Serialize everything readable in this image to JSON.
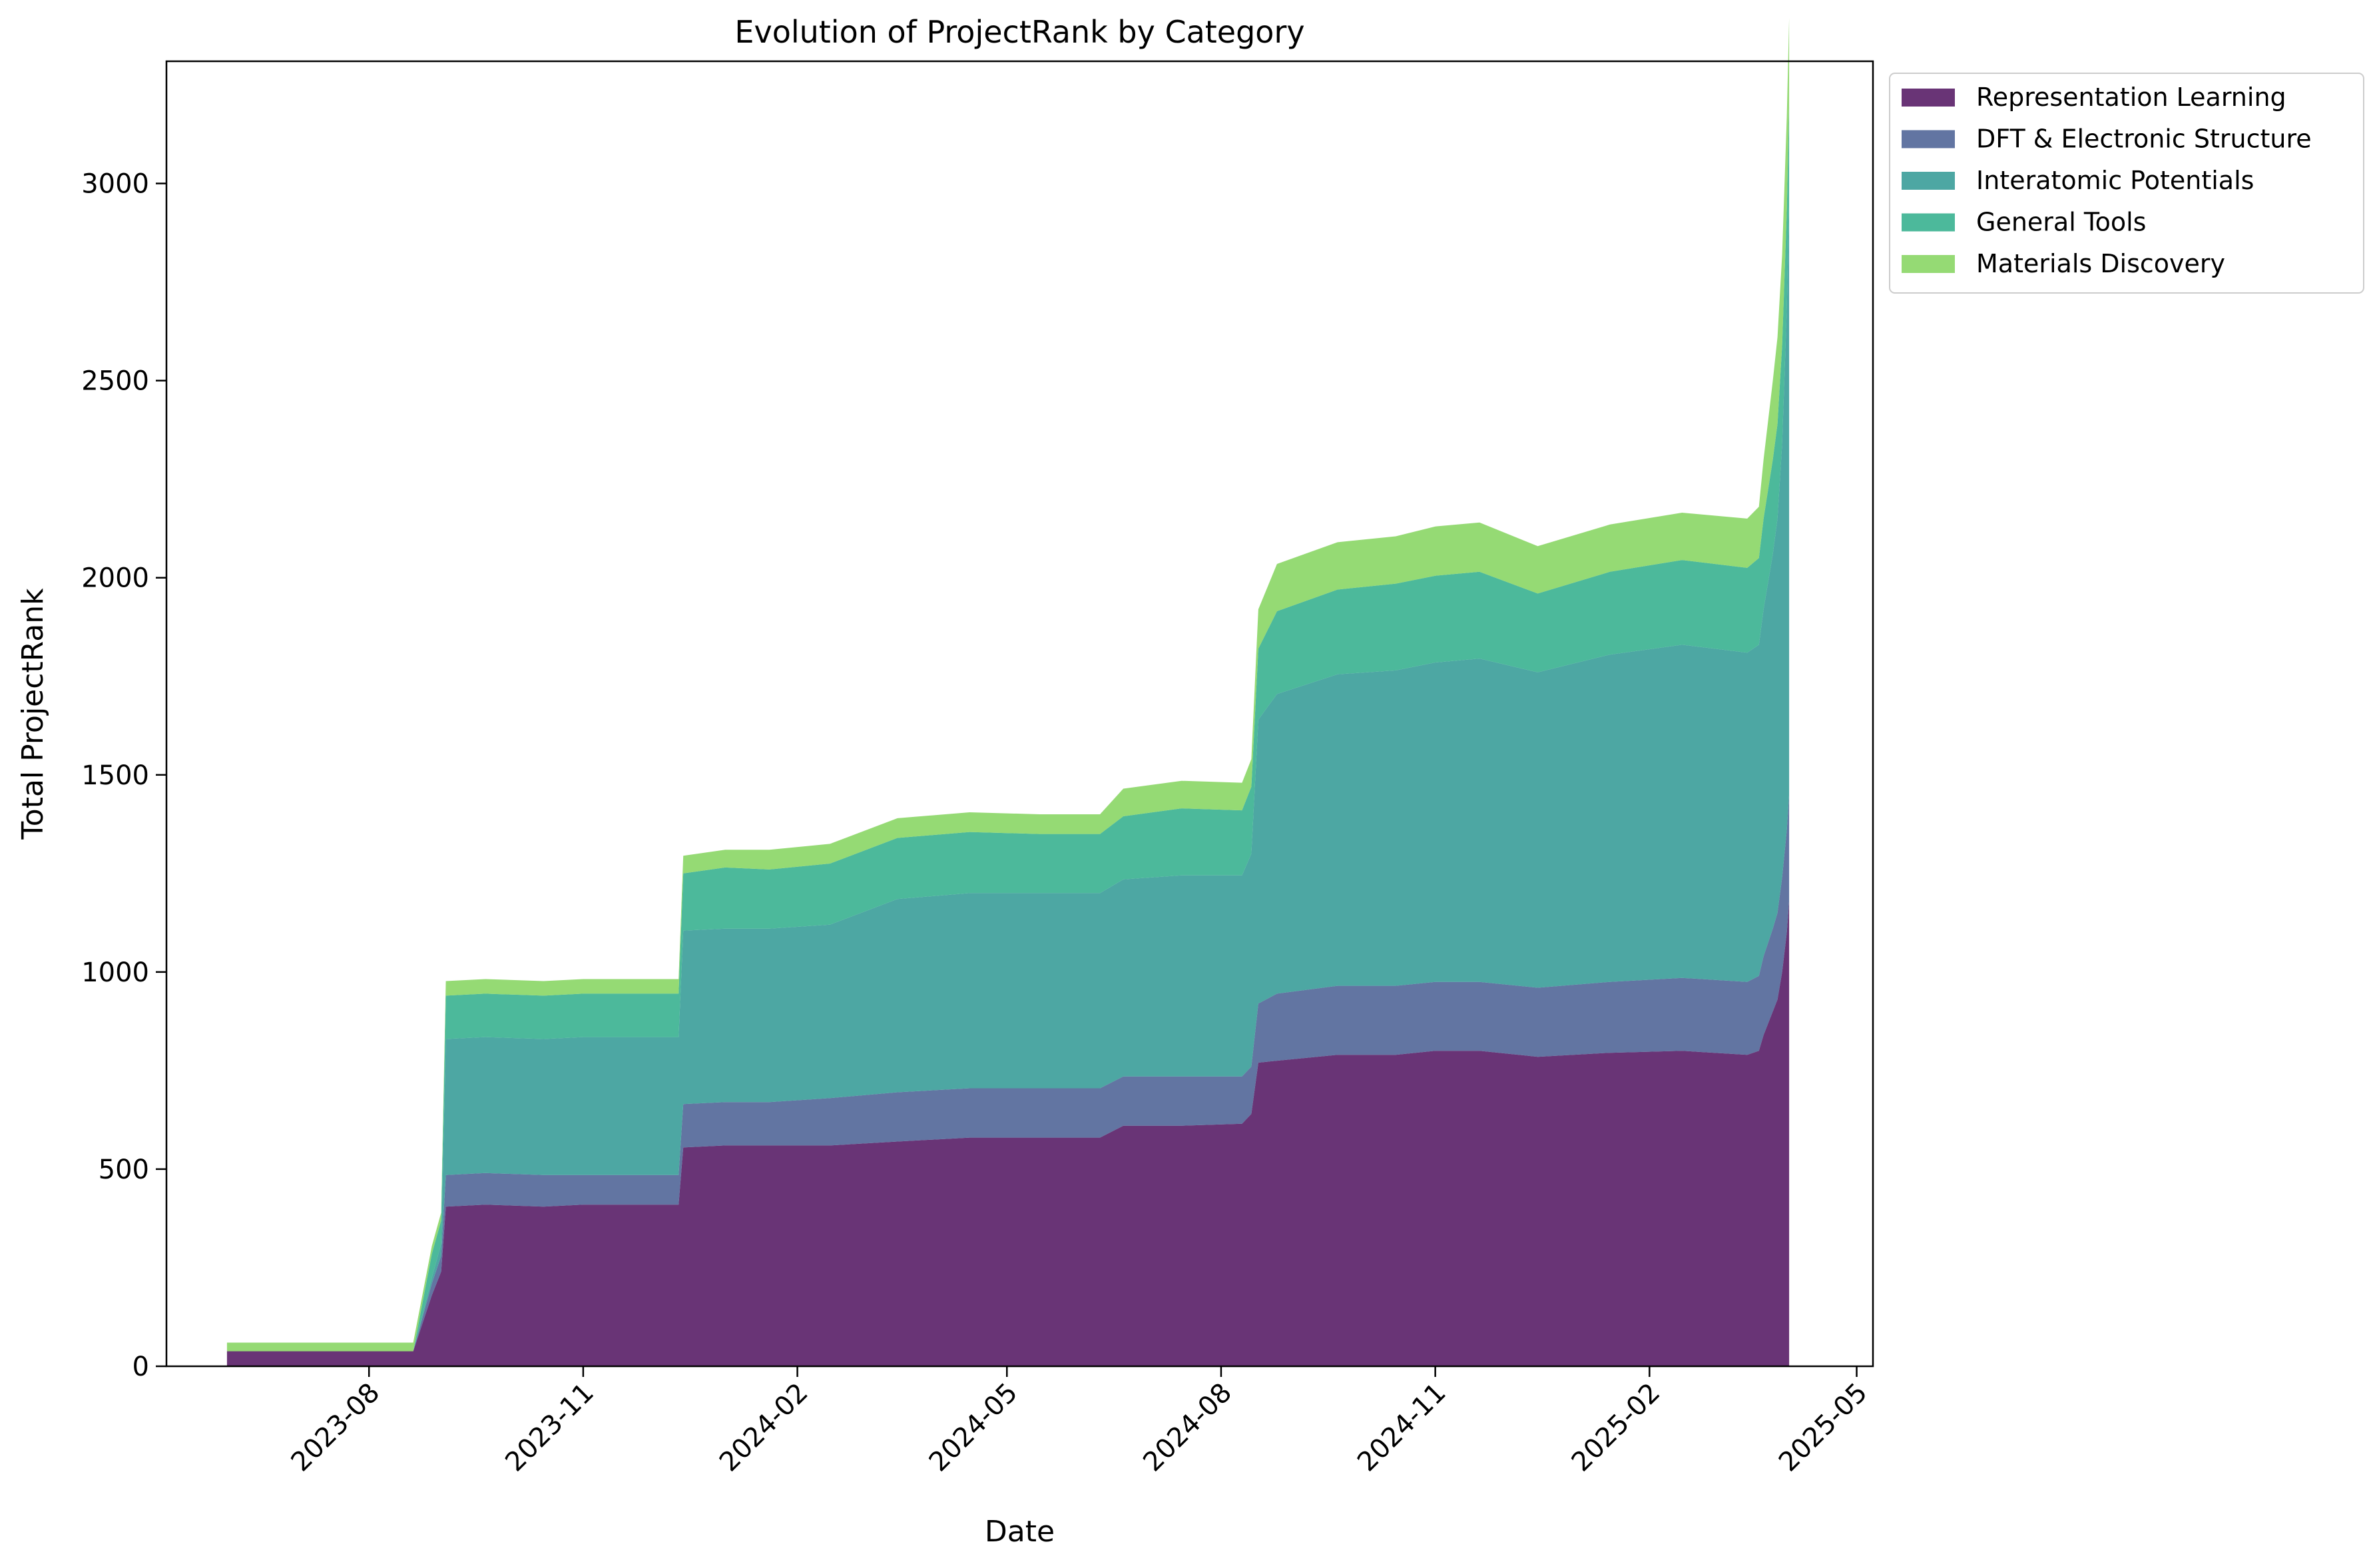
{
  "chart_data": {
    "type": "area",
    "stacked": true,
    "title": "Evolution of ProjectRank by Category",
    "xlabel": "Date",
    "ylabel": "Total ProjectRank",
    "x_ticks": [
      "2023-08",
      "2023-11",
      "2024-02",
      "2024-05",
      "2024-08",
      "2024-11",
      "2025-02",
      "2025-05"
    ],
    "y_ticks": [
      0,
      500,
      1000,
      1500,
      2000,
      2500,
      3000
    ],
    "xlim": [
      "2023-05-06",
      "2025-05-08"
    ],
    "ylim": [
      0,
      3310
    ],
    "grid": false,
    "legend_placement": "outside-top-right",
    "x": [
      "2023-06-01",
      "2023-08-20",
      "2023-08-28",
      "2023-09-01",
      "2023-09-03",
      "2023-09-20",
      "2023-10-15",
      "2023-11-01",
      "2023-12-01",
      "2023-12-12",
      "2023-12-14",
      "2024-01-01",
      "2024-01-20",
      "2024-02-15",
      "2024-03-15",
      "2024-04-15",
      "2024-05-15",
      "2024-06-10",
      "2024-06-20",
      "2024-07-15",
      "2024-08-10",
      "2024-08-14",
      "2024-08-17",
      "2024-08-25",
      "2024-09-20",
      "2024-10-15",
      "2024-11-01",
      "2024-11-20",
      "2024-12-15",
      "2025-01-15",
      "2025-02-15",
      "2025-03-15",
      "2025-03-20",
      "2025-03-22",
      "2025-03-26",
      "2025-03-28",
      "2025-03-30",
      "2025-04-01",
      "2025-04-02"
    ],
    "series": [
      {
        "name": "Representation Learning",
        "color": "#440154",
        "values": [
          38,
          38,
          180,
          240,
          405,
          410,
          405,
          410,
          410,
          410,
          555,
          560,
          560,
          560,
          570,
          580,
          580,
          580,
          610,
          610,
          615,
          640,
          770,
          775,
          790,
          790,
          800,
          800,
          785,
          795,
          800,
          790,
          800,
          840,
          900,
          930,
          1000,
          1100,
          1180
        ]
      },
      {
        "name": "DFT & Electronic Structure",
        "color": "#3b528b",
        "values": [
          0,
          0,
          30,
          40,
          80,
          80,
          80,
          75,
          75,
          75,
          110,
          110,
          110,
          120,
          125,
          125,
          125,
          125,
          125,
          125,
          120,
          120,
          150,
          170,
          175,
          175,
          175,
          175,
          175,
          180,
          185,
          185,
          190,
          200,
          210,
          220,
          240,
          260,
          270
        ]
      },
      {
        "name": "Interatomic Potentials",
        "color": "#21918c",
        "values": [
          0,
          0,
          15,
          30,
          345,
          345,
          345,
          350,
          350,
          350,
          440,
          440,
          440,
          440,
          490,
          495,
          495,
          495,
          500,
          510,
          510,
          540,
          720,
          760,
          790,
          800,
          810,
          820,
          800,
          830,
          845,
          835,
          840,
          880,
          950,
          1000,
          1100,
          1320,
          1500
        ]
      },
      {
        "name": "General Tools",
        "color": "#1fa882",
        "values": [
          0,
          0,
          60,
          60,
          110,
          110,
          110,
          110,
          110,
          110,
          145,
          155,
          150,
          155,
          155,
          155,
          150,
          150,
          160,
          170,
          165,
          170,
          180,
          210,
          215,
          220,
          220,
          220,
          200,
          210,
          215,
          215,
          220,
          230,
          240,
          240,
          250,
          250,
          250
        ]
      },
      {
        "name": "Materials Discovery",
        "color": "#7ad151",
        "values": [
          22,
          22,
          20,
          20,
          37,
          37,
          37,
          37,
          37,
          37,
          45,
          45,
          50,
          50,
          50,
          50,
          50,
          50,
          70,
          70,
          70,
          70,
          100,
          120,
          120,
          120,
          125,
          125,
          120,
          120,
          120,
          125,
          130,
          150,
          200,
          220,
          230,
          240,
          220
        ]
      }
    ]
  }
}
